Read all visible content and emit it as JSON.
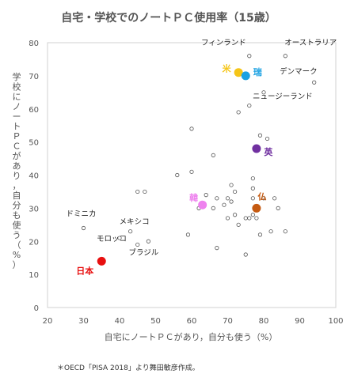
{
  "chart_data": {
    "type": "scatter",
    "title": "自宅・学校でのノートＰＣ使用率（15歳）",
    "xlabel": "自宅にノートＰＣがあり，自分も使う（%）",
    "ylabel": "学校にノートＰＣがあり，自分も使う（%）",
    "xlim": [
      20,
      100
    ],
    "ylim": [
      0,
      80
    ],
    "xticks": [
      20,
      30,
      40,
      50,
      60,
      70,
      80,
      90,
      100
    ],
    "yticks": [
      0,
      10,
      20,
      30,
      40,
      50,
      60,
      70,
      80
    ],
    "grid": false,
    "note": "＊OECD「PISA 2018」より舞田敏彦作成。",
    "highlighted": [
      {
        "label": "米",
        "x": 73,
        "y": 71,
        "color": "#f5c518",
        "label_color": "#f5c518"
      },
      {
        "label": "瑞",
        "x": 75,
        "y": 70,
        "color": "#1ba1e2",
        "label_color": "#1ba1e2"
      },
      {
        "label": "英",
        "x": 78,
        "y": 48,
        "color": "#7030a0",
        "label_color": "#7030a0"
      },
      {
        "label": "韓",
        "x": 63,
        "y": 31,
        "color": "#ee82ee",
        "label_color": "#ee82ee"
      },
      {
        "label": "仏",
        "x": 78,
        "y": 30,
        "color": "#c55a11",
        "label_color": "#c55a11"
      },
      {
        "label": "日本",
        "x": 35,
        "y": 14,
        "color": "#e81010",
        "label_color": "#e81010"
      }
    ],
    "labeled": [
      {
        "label": "フィンランド",
        "x": 76,
        "y": 76
      },
      {
        "label": "オーストラリア",
        "x": 86,
        "y": 76
      },
      {
        "label": "デンマーク",
        "x": 94,
        "y": 68
      },
      {
        "label": "ニュージーランド",
        "x": 80,
        "y": 65
      },
      {
        "label": "ドミニカ",
        "x": 30,
        "y": 24
      },
      {
        "label": "メキシコ",
        "x": 43,
        "y": 23
      },
      {
        "label": "モロッコ",
        "x": 40,
        "y": 21
      },
      {
        "label": "ブラジル",
        "x": 48,
        "y": 20
      }
    ],
    "points": [
      {
        "x": 73,
        "y": 59
      },
      {
        "x": 76,
        "y": 61
      },
      {
        "x": 79,
        "y": 52
      },
      {
        "x": 81,
        "y": 51
      },
      {
        "x": 60,
        "y": 54
      },
      {
        "x": 66,
        "y": 46
      },
      {
        "x": 56,
        "y": 40
      },
      {
        "x": 60,
        "y": 41
      },
      {
        "x": 45,
        "y": 35
      },
      {
        "x": 47,
        "y": 35
      },
      {
        "x": 64,
        "y": 34
      },
      {
        "x": 67,
        "y": 33
      },
      {
        "x": 70,
        "y": 33
      },
      {
        "x": 71,
        "y": 37
      },
      {
        "x": 72,
        "y": 35
      },
      {
        "x": 77,
        "y": 39
      },
      {
        "x": 77,
        "y": 36
      },
      {
        "x": 77,
        "y": 33
      },
      {
        "x": 62,
        "y": 30
      },
      {
        "x": 66,
        "y": 30
      },
      {
        "x": 69,
        "y": 31
      },
      {
        "x": 71,
        "y": 32
      },
      {
        "x": 70,
        "y": 27
      },
      {
        "x": 72,
        "y": 28
      },
      {
        "x": 75,
        "y": 27
      },
      {
        "x": 76,
        "y": 27
      },
      {
        "x": 77,
        "y": 28
      },
      {
        "x": 78,
        "y": 27
      },
      {
        "x": 80,
        "y": 33
      },
      {
        "x": 83,
        "y": 33
      },
      {
        "x": 84,
        "y": 30
      },
      {
        "x": 73,
        "y": 25
      },
      {
        "x": 82,
        "y": 23
      },
      {
        "x": 86,
        "y": 23
      },
      {
        "x": 79,
        "y": 22
      },
      {
        "x": 59,
        "y": 22
      },
      {
        "x": 67,
        "y": 18
      },
      {
        "x": 75,
        "y": 16
      },
      {
        "x": 45,
        "y": 19
      }
    ]
  }
}
